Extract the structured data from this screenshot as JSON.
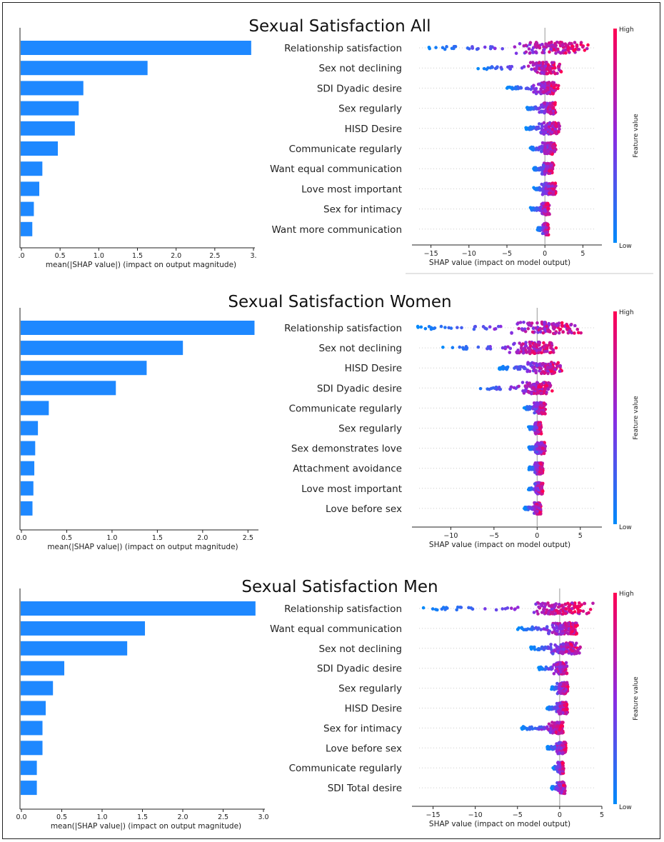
{
  "panels": [
    {
      "title": "Sexual Satisfaction All",
      "features": [
        "Relationship satisfaction",
        "Sex not declining",
        "SDI Dyadic desire",
        "Sex regularly",
        "HISD Desire",
        "Communicate regularly",
        "Want equal communication",
        "Love most important",
        "Sex for intimacy",
        "Want more communication"
      ],
      "bar_values": [
        2.98,
        1.64,
        0.81,
        0.75,
        0.7,
        0.48,
        0.28,
        0.24,
        0.17,
        0.15
      ],
      "bar_xticks": [
        ".0",
        "0.5",
        "1.0",
        "1.5",
        "2.0",
        "2.5",
        "3."
      ],
      "bar_xlim": [
        0,
        3.0
      ],
      "bar_xlabel": "mean(|SHAP value|) (impact on output magnitude)",
      "bee_xticks": [
        -15,
        -10,
        -5,
        0,
        5
      ],
      "bee_xlim": [
        -17.5,
        7.5
      ],
      "bee_xlabel": "SHAP value (impact on model output)",
      "bee_ranges": [
        [
          -16,
          6
        ],
        [
          -9,
          2.3
        ],
        [
          -5,
          2
        ],
        [
          -2.5,
          1.5
        ],
        [
          -2.5,
          2
        ],
        [
          -2,
          1.5
        ],
        [
          -1.5,
          1.2
        ],
        [
          -1.5,
          1.5
        ],
        [
          -2,
          0.7
        ],
        [
          -1,
          0.5
        ]
      ]
    },
    {
      "title": "Sexual Satisfaction Women",
      "features": [
        "Relationship satisfaction",
        "Sex not declining",
        "HISD Desire",
        "SDI Dyadic desire",
        "Communicate regularly",
        "Sex regularly",
        "Sex demonstrates love",
        "Attachment avoidance",
        "Love most important",
        "Love before sex"
      ],
      "bar_values": [
        2.58,
        1.79,
        1.39,
        1.05,
        0.31,
        0.19,
        0.16,
        0.15,
        0.14,
        0.13
      ],
      "bar_xticks": [
        "0.0",
        "0.5",
        "1.0",
        "1.5",
        "2.0",
        "2.5"
      ],
      "bar_xlim": [
        0,
        2.6
      ],
      "bar_xlabel": "mean(|SHAP value|) (impact on output magnitude)",
      "bee_xticks": [
        -10,
        -5,
        0,
        5
      ],
      "bee_xlim": [
        -14.5,
        7.5
      ],
      "bee_xlabel": "SHAP value (impact on model output)",
      "bee_ranges": [
        [
          -14,
          5.5
        ],
        [
          -11,
          2.5
        ],
        [
          -4.5,
          3
        ],
        [
          -7.5,
          2
        ],
        [
          -1.5,
          1
        ],
        [
          -1,
          0.5
        ],
        [
          -1,
          1
        ],
        [
          -1,
          0.7
        ],
        [
          -1,
          0.7
        ],
        [
          -1.5,
          0.5
        ]
      ]
    },
    {
      "title": "Sexual Satisfaction Men",
      "features": [
        "Relationship satisfaction",
        "Want equal communication",
        "Sex not declining",
        "SDI Dyadic desire",
        "Sex regularly",
        "HISD Desire",
        "Sex for intimacy",
        "Love before sex",
        "Communicate regularly",
        "SDI Total desire"
      ],
      "bar_values": [
        2.91,
        1.54,
        1.32,
        0.54,
        0.4,
        0.31,
        0.27,
        0.27,
        0.2,
        0.2
      ],
      "bar_xticks": [
        "0.0",
        "0.5",
        "1.0",
        "1.5",
        "2.0",
        "2.5",
        "3.0"
      ],
      "bar_xlim": [
        0,
        3.0
      ],
      "bar_xlabel": "mean(|SHAP value|) (impact on output magnitude)",
      "bee_xticks": [
        -15,
        -10,
        -5,
        0,
        5
      ],
      "bee_xlim": [
        -17.5,
        5.0
      ],
      "bee_xlabel": "SHAP value (impact on model output)",
      "bee_ranges": [
        [
          -16.5,
          4
        ],
        [
          -5,
          2.5
        ],
        [
          -3.5,
          2.5
        ],
        [
          -2.5,
          1
        ],
        [
          -1,
          1
        ],
        [
          -1.5,
          1
        ],
        [
          -4.5,
          0.5
        ],
        [
          -1.5,
          0.8
        ],
        [
          -0.8,
          0.5
        ],
        [
          -1,
          0.7
        ]
      ]
    }
  ],
  "colorbar": {
    "high": "High",
    "low": "Low",
    "label": "Feature value",
    "low_color": "#008bfb",
    "high_color": "#ff0052"
  },
  "colors": {
    "bar": "#1e88ff"
  },
  "chart_data": [
    {
      "type": "bar",
      "title": "Sexual Satisfaction All",
      "orientation": "horizontal",
      "categories": [
        "Relationship satisfaction",
        "Sex not declining",
        "SDI Dyadic desire",
        "Sex regularly",
        "HISD Desire",
        "Communicate regularly",
        "Want equal communication",
        "Love most important",
        "Sex for intimacy",
        "Want more communication"
      ],
      "values": [
        2.98,
        1.64,
        0.81,
        0.75,
        0.7,
        0.48,
        0.28,
        0.24,
        0.17,
        0.15
      ],
      "xlabel": "mean(|SHAP value|) (impact on output magnitude)",
      "xlim": [
        0,
        3.0
      ]
    },
    {
      "type": "scatter",
      "title": "Sexual Satisfaction All",
      "subtype": "beeswarm",
      "xlabel": "SHAP value (impact on model output)",
      "xlim": [
        -17.5,
        7.5
      ],
      "legend": "right colorbar: Feature value (Low–High)"
    },
    {
      "type": "bar",
      "title": "Sexual Satisfaction Women",
      "orientation": "horizontal",
      "categories": [
        "Relationship satisfaction",
        "Sex not declining",
        "HISD Desire",
        "SDI Dyadic desire",
        "Communicate regularly",
        "Sex regularly",
        "Sex demonstrates love",
        "Attachment avoidance",
        "Love most important",
        "Love before sex"
      ],
      "values": [
        2.58,
        1.79,
        1.39,
        1.05,
        0.31,
        0.19,
        0.16,
        0.15,
        0.14,
        0.13
      ],
      "xlabel": "mean(|SHAP value|) (impact on output magnitude)",
      "xlim": [
        0,
        2.6
      ]
    },
    {
      "type": "scatter",
      "title": "Sexual Satisfaction Women",
      "subtype": "beeswarm",
      "xlabel": "SHAP value (impact on model output)",
      "xlim": [
        -14.5,
        7.5
      ],
      "legend": "right colorbar: Feature value (Low–High)"
    },
    {
      "type": "bar",
      "title": "Sexual Satisfaction Men",
      "orientation": "horizontal",
      "categories": [
        "Relationship satisfaction",
        "Want equal communication",
        "Sex not declining",
        "SDI Dyadic desire",
        "Sex regularly",
        "HISD Desire",
        "Sex for intimacy",
        "Love before sex",
        "Communicate regularly",
        "SDI Total desire"
      ],
      "values": [
        2.91,
        1.54,
        1.32,
        0.54,
        0.4,
        0.31,
        0.27,
        0.27,
        0.2,
        0.2
      ],
      "xlabel": "mean(|SHAP value|) (impact on output magnitude)",
      "xlim": [
        0,
        3.0
      ]
    },
    {
      "type": "scatter",
      "title": "Sexual Satisfaction Men",
      "subtype": "beeswarm",
      "xlabel": "SHAP value (impact on model output)",
      "xlim": [
        -17.5,
        5.0
      ],
      "legend": "right colorbar: Feature value (Low–High)"
    }
  ]
}
